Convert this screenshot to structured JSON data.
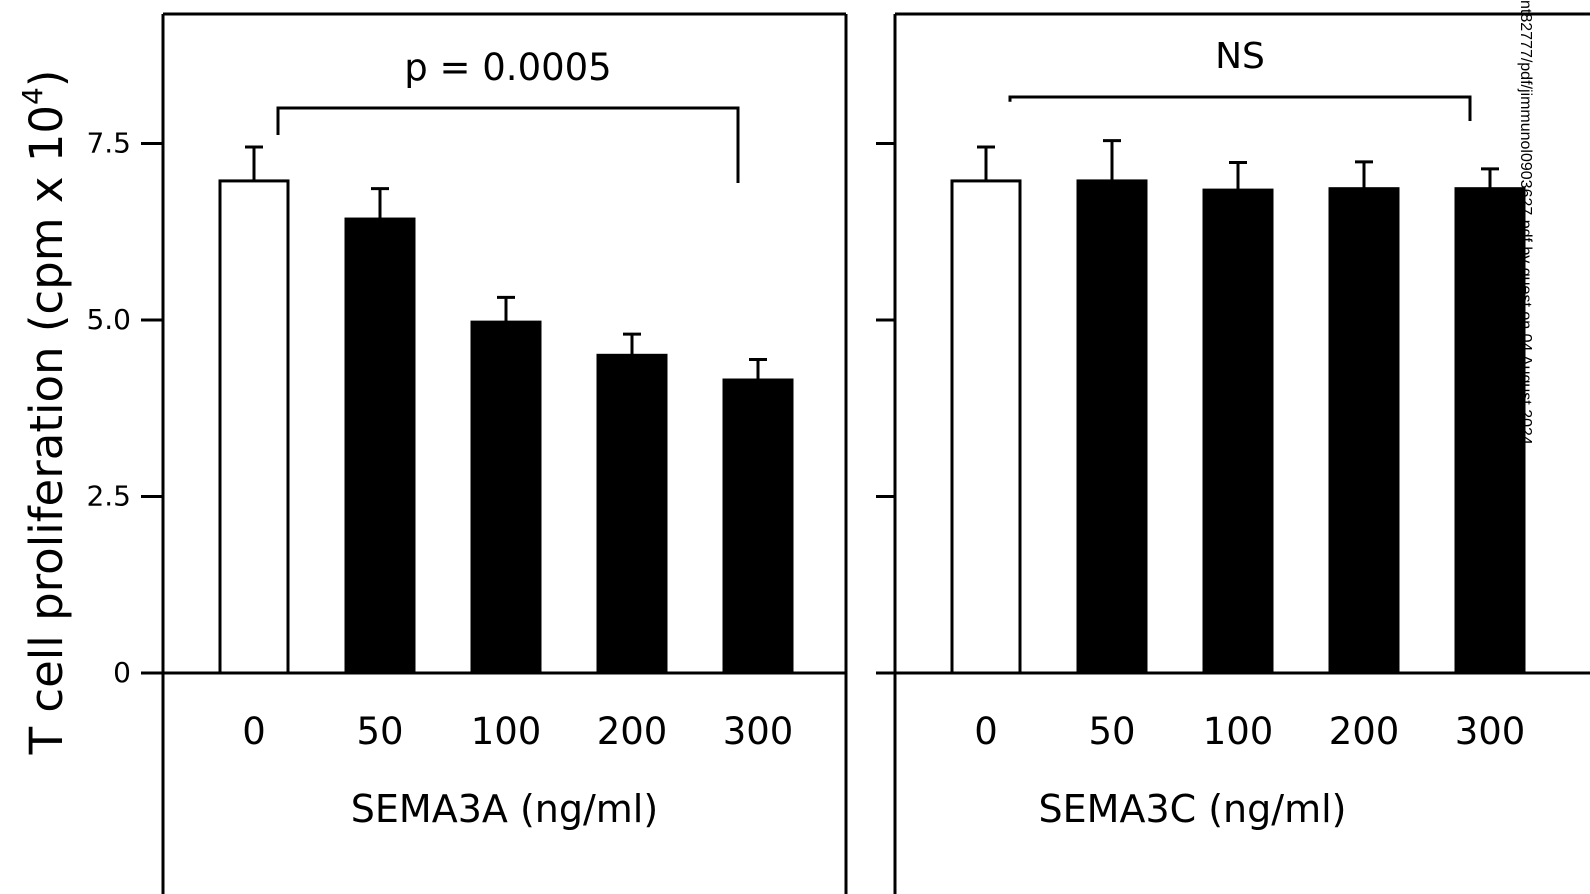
{
  "figure": {
    "ylabel_main": "T cell proliferation (cpm x 10",
    "ylabel_exp": "4",
    "ylabel_close": ")",
    "watermark": "nt82777/pdf/jimmunol0903627.pdf by guest on 04 August 2024"
  },
  "chart_data": [
    {
      "type": "bar",
      "categories": [
        "0",
        "50",
        "100",
        "200",
        "300"
      ],
      "values": [
        6.97,
        6.43,
        4.97,
        4.5,
        4.15
      ],
      "errors": [
        0.48,
        0.43,
        0.35,
        0.3,
        0.29
      ],
      "bar_fill": [
        "#ffffff",
        "#000000",
        "#000000",
        "#000000",
        "#000000"
      ],
      "xlabel": "SEMA3A (ng/ml)",
      "ylim": [
        0,
        9.35
      ],
      "yticks": [
        0,
        2.5,
        5.0,
        7.5
      ],
      "ytick_labels": [
        "0",
        "2.5",
        "5.0",
        "7.5"
      ],
      "annotation": {
        "text": "p = 0.0005",
        "from_category": "0",
        "to_category": "300"
      }
    },
    {
      "type": "bar",
      "categories": [
        "0",
        "50",
        "100",
        "200",
        "300"
      ],
      "values": [
        6.97,
        6.97,
        6.84,
        6.86,
        6.86
      ],
      "errors": [
        0.48,
        0.57,
        0.39,
        0.38,
        0.28
      ],
      "bar_fill": [
        "#ffffff",
        "#000000",
        "#000000",
        "#000000",
        "#000000"
      ],
      "xlabel": "SEMA3C (ng/ml)",
      "ylim": [
        0,
        9.35
      ],
      "yticks": [
        0,
        2.5,
        5.0,
        7.5
      ],
      "ytick_labels": [],
      "annotation": {
        "text": "NS",
        "from_category": "0",
        "to_category": "300"
      }
    }
  ]
}
